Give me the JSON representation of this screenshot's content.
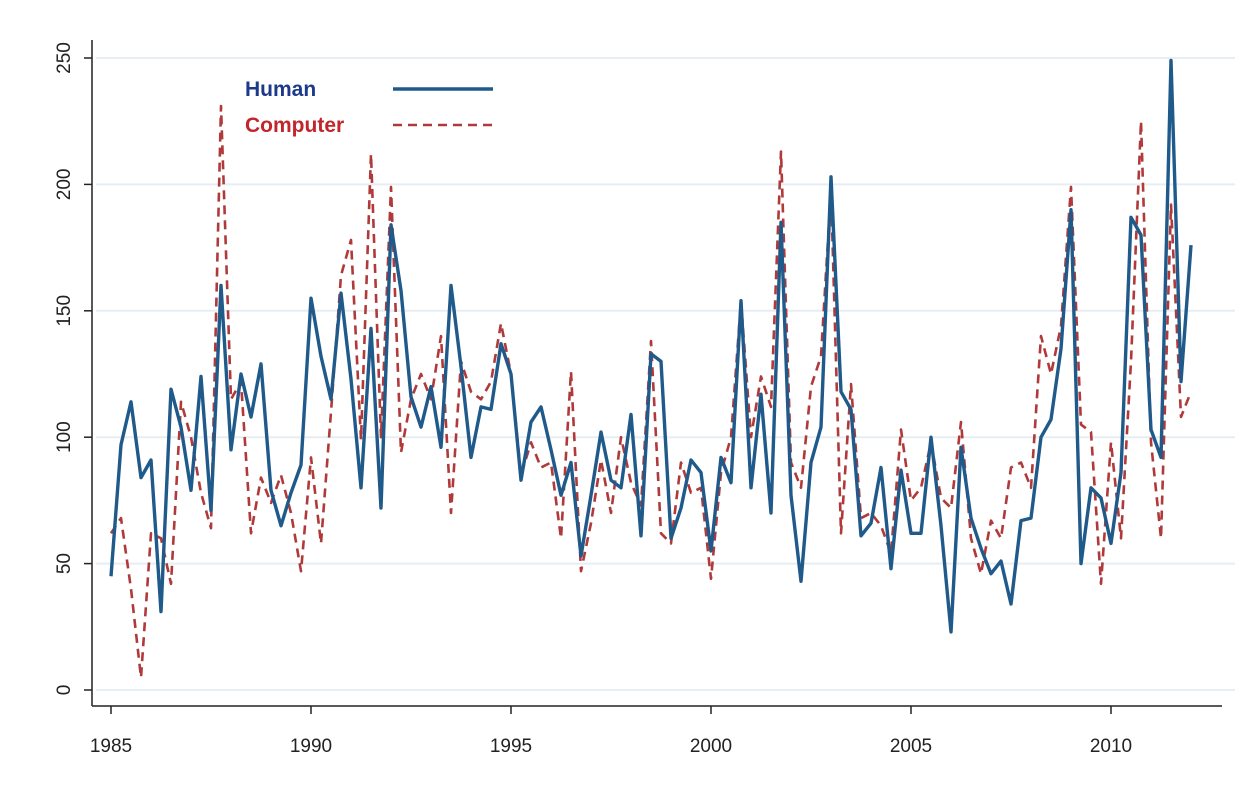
{
  "chart_data": {
    "type": "line",
    "title": "",
    "xlabel": "",
    "ylabel": "",
    "xlim": [
      1985,
      2012.4
    ],
    "ylim": [
      0,
      250
    ],
    "xticks": [
      1985,
      1990,
      1995,
      2000,
      2005,
      2010
    ],
    "yticks": [
      0,
      50,
      100,
      150,
      200,
      250
    ],
    "xtick_labels": [
      "1985",
      "1990",
      "1995",
      "2000",
      "2005",
      "2010"
    ],
    "ytick_labels": [
      "0",
      "50",
      "100",
      "150",
      "200",
      "250"
    ],
    "grid": "horizontal",
    "legend_position": "top-left",
    "series": [
      {
        "name": "Human",
        "style": "solid",
        "color": "#1f5a8a",
        "x": [
          1985.0,
          1985.25,
          1985.5,
          1985.75,
          1986.0,
          1986.25,
          1986.5,
          1986.75,
          1987.0,
          1987.25,
          1987.5,
          1987.75,
          1988.0,
          1988.25,
          1988.5,
          1988.75,
          1989.0,
          1989.25,
          1989.5,
          1989.75,
          1990.0,
          1990.25,
          1990.5,
          1990.75,
          1991.0,
          1991.25,
          1991.5,
          1991.75,
          1992.0,
          1992.25,
          1992.5,
          1992.75,
          1993.0,
          1993.25,
          1993.5,
          1993.75,
          1994.0,
          1994.25,
          1994.5,
          1994.75,
          1995.0,
          1995.25,
          1995.5,
          1995.75,
          1996.0,
          1996.25,
          1996.5,
          1996.75,
          1997.0,
          1997.25,
          1997.5,
          1997.75,
          1998.0,
          1998.25,
          1998.5,
          1998.75,
          1999.0,
          1999.25,
          1999.5,
          1999.75,
          2000.0,
          2000.25,
          2000.5,
          2000.75,
          2001.0,
          2001.25,
          2001.5,
          2001.75,
          2002.0,
          2002.25,
          2002.5,
          2002.75,
          2003.0,
          2003.25,
          2003.5,
          2003.75,
          2004.0,
          2004.25,
          2004.5,
          2004.75,
          2005.0,
          2005.25,
          2005.5,
          2005.75,
          2006.0,
          2006.25,
          2006.5,
          2006.75,
          2007.0,
          2007.25,
          2007.5,
          2007.75,
          2008.0,
          2008.25,
          2008.5,
          2008.75,
          2009.0,
          2009.25,
          2009.5,
          2009.75,
          2010.0,
          2010.25,
          2010.5,
          2010.75,
          2011.0,
          2011.25,
          2011.5,
          2011.75,
          2012.0
        ],
        "values": [
          45,
          97,
          114,
          84,
          91,
          31,
          119,
          104,
          79,
          124,
          71,
          160,
          95,
          125,
          108,
          129,
          79,
          65,
          78,
          89,
          155,
          132,
          115,
          157,
          123,
          80,
          143,
          72,
          184,
          158,
          116,
          104,
          120,
          96,
          160,
          128,
          92,
          112,
          111,
          137,
          125,
          83,
          106,
          112,
          95,
          77,
          90,
          53,
          77,
          102,
          83,
          80,
          109,
          61,
          133,
          130,
          60,
          72,
          91,
          86,
          55,
          92,
          82,
          154,
          80,
          117,
          70,
          185,
          77,
          43,
          90,
          104,
          203,
          118,
          111,
          61,
          66,
          88,
          48,
          87,
          62,
          62,
          100,
          65,
          23,
          96,
          68,
          56,
          46,
          51,
          34,
          67,
          68,
          100,
          107,
          135,
          190,
          50,
          80,
          76,
          58,
          86,
          187,
          180,
          103,
          92,
          249,
          122,
          176
        ]
      },
      {
        "name": "Computer",
        "style": "dashed",
        "color": "#b03a3a",
        "x": [
          1985.0,
          1985.25,
          1985.5,
          1985.75,
          1986.0,
          1986.25,
          1986.5,
          1986.75,
          1987.0,
          1987.25,
          1987.5,
          1987.75,
          1988.0,
          1988.25,
          1988.5,
          1988.75,
          1989.0,
          1989.25,
          1989.5,
          1989.75,
          1990.0,
          1990.25,
          1990.5,
          1990.75,
          1991.0,
          1991.25,
          1991.5,
          1991.75,
          1992.0,
          1992.25,
          1992.5,
          1992.75,
          1993.0,
          1993.25,
          1993.5,
          1993.75,
          1994.0,
          1994.25,
          1994.5,
          1994.75,
          1995.0,
          1995.25,
          1995.5,
          1995.75,
          1996.0,
          1996.25,
          1996.5,
          1996.75,
          1997.0,
          1997.25,
          1997.5,
          1997.75,
          1998.0,
          1998.25,
          1998.5,
          1998.75,
          1999.0,
          1999.25,
          1999.5,
          1999.75,
          2000.0,
          2000.25,
          2000.5,
          2000.75,
          2001.0,
          2001.25,
          2001.5,
          2001.75,
          2002.0,
          2002.25,
          2002.5,
          2002.75,
          2003.0,
          2003.25,
          2003.5,
          2003.75,
          2004.0,
          2004.25,
          2004.5,
          2004.75,
          2005.0,
          2005.25,
          2005.5,
          2005.75,
          2006.0,
          2006.25,
          2006.5,
          2006.75,
          2007.0,
          2007.25,
          2007.5,
          2007.75,
          2008.0,
          2008.25,
          2008.5,
          2008.75,
          2009.0,
          2009.25,
          2009.5,
          2009.75,
          2010.0,
          2010.25,
          2010.5,
          2010.75,
          2011.0,
          2011.25,
          2011.5,
          2011.75,
          2012.0
        ],
        "values": [
          62,
          68,
          40,
          5,
          62,
          60,
          42,
          114,
          100,
          78,
          64,
          231,
          115,
          122,
          62,
          84,
          74,
          85,
          70,
          47,
          92,
          58,
          110,
          164,
          178,
          99,
          212,
          100,
          199,
          94,
          115,
          125,
          115,
          140,
          70,
          130,
          118,
          115,
          122,
          145,
          125,
          85,
          98,
          88,
          90,
          60,
          126,
          47,
          66,
          91,
          70,
          100,
          82,
          73,
          138,
          62,
          58,
          90,
          78,
          80,
          44,
          86,
          100,
          154,
          100,
          124,
          112,
          213,
          90,
          80,
          120,
          132,
          198,
          62,
          121,
          68,
          70,
          65,
          54,
          103,
          75,
          80,
          98,
          76,
          72,
          106,
          60,
          46,
          67,
          60,
          88,
          90,
          80,
          140,
          125,
          144,
          199,
          105,
          102,
          42,
          98,
          60,
          130,
          225,
          98,
          60,
          192,
          108,
          118
        ]
      }
    ]
  }
}
